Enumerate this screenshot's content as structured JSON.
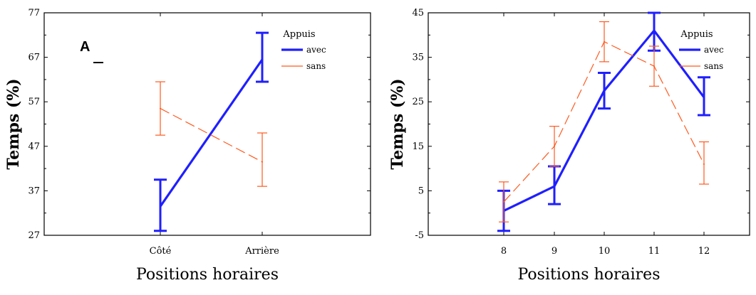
{
  "chart_data": [
    {
      "type": "line",
      "panel_label": "A",
      "xlabel": "Positions horaires",
      "ylabel": "Temps (%)",
      "categories": [
        "Côté",
        "Arrière"
      ],
      "ylim": [
        27,
        77
      ],
      "yticks": [
        27,
        37,
        47,
        57,
        67,
        77
      ],
      "grid": false,
      "legend": {
        "title": "Appuis",
        "position": "top-right"
      },
      "series": [
        {
          "name": "avec",
          "style": "solid",
          "color": "#1f1fff",
          "values": [
            33.5,
            66.5
          ],
          "err_low": [
            28,
            61.5
          ],
          "err_high": [
            39.5,
            72.5
          ]
        },
        {
          "name": "sans",
          "style": "dashed",
          "color": "#ff5a1f",
          "values": [
            55.5,
            43.5
          ],
          "err_low": [
            49.5,
            38
          ],
          "err_high": [
            61.5,
            50
          ]
        }
      ]
    },
    {
      "type": "line",
      "xlabel": "Positions horaires",
      "ylabel": "Temps (%)",
      "categories": [
        "8",
        "9",
        "10",
        "11",
        "12"
      ],
      "ylim": [
        -5,
        45
      ],
      "yticks": [
        -5,
        5,
        15,
        25,
        35,
        45
      ],
      "grid": false,
      "legend": {
        "title": "Appuis",
        "position": "top-right"
      },
      "series": [
        {
          "name": "avec",
          "style": "solid",
          "color": "#1f1fff",
          "values": [
            0.5,
            6,
            27.5,
            41,
            26
          ],
          "err_low": [
            -4,
            2,
            23.5,
            36.5,
            22
          ],
          "err_high": [
            5,
            10.5,
            31.5,
            45,
            30.5
          ]
        },
        {
          "name": "sans",
          "style": "dashed",
          "color": "#ff5a1f",
          "values": [
            2.5,
            15,
            38.5,
            33,
            11
          ],
          "err_low": [
            -2,
            10.5,
            34,
            28.5,
            6.5
          ],
          "err_high": [
            7,
            19.5,
            43,
            37.5,
            16
          ]
        }
      ]
    }
  ]
}
